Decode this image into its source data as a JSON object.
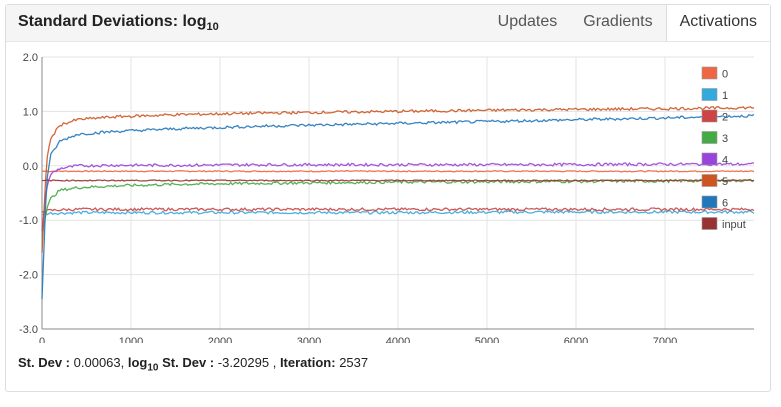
{
  "header": {
    "title": "Standard Deviations: log",
    "title_sub": "10",
    "tabs": [
      {
        "label": "Updates",
        "active": false
      },
      {
        "label": "Gradients",
        "active": false
      },
      {
        "label": "Activations",
        "active": true
      }
    ]
  },
  "chart_data": {
    "type": "line",
    "title": "Standard Deviations: log10",
    "xlabel": "",
    "ylabel": "",
    "xlim": [
      0,
      8000
    ],
    "ylim": [
      -3.0,
      2.0
    ],
    "x_ticks": [
      "0",
      "1000",
      "2000",
      "3000",
      "4000",
      "5000",
      "6000",
      "7000"
    ],
    "y_ticks": [
      "2.0",
      "1.0",
      "0.0",
      "-1.0",
      "-2.0",
      "-3.0"
    ],
    "grid": true,
    "legend_position": "top-right",
    "series": [
      {
        "name": "0",
        "color": "#ee6644",
        "x": [
          0,
          50,
          100,
          200,
          400,
          800,
          1500,
          2500,
          4000,
          5500,
          7000,
          8000
        ],
        "values": [
          -0.1,
          -0.1,
          -0.1,
          -0.1,
          -0.1,
          -0.1,
          -0.1,
          -0.1,
          -0.1,
          -0.1,
          -0.1,
          -0.1
        ]
      },
      {
        "name": "1",
        "color": "#33aadd",
        "x": [
          0,
          50,
          100,
          200,
          400,
          800,
          1500,
          2500,
          4000,
          5500,
          7000,
          8000
        ],
        "values": [
          -0.9,
          -0.88,
          -0.87,
          -0.87,
          -0.86,
          -0.86,
          -0.86,
          -0.86,
          -0.86,
          -0.85,
          -0.85,
          -0.85
        ]
      },
      {
        "name": "2",
        "color": "#cc4444",
        "x": [
          0,
          50,
          100,
          200,
          400,
          800,
          1500,
          2500,
          4000,
          5500,
          7000,
          8000
        ],
        "values": [
          -0.85,
          -0.83,
          -0.82,
          -0.81,
          -0.8,
          -0.8,
          -0.8,
          -0.8,
          -0.8,
          -0.8,
          -0.8,
          -0.8
        ]
      },
      {
        "name": "3",
        "color": "#44aa44",
        "x": [
          0,
          50,
          100,
          200,
          400,
          800,
          1500,
          2500,
          4000,
          5500,
          7000,
          8000
        ],
        "values": [
          -1.3,
          -0.8,
          -0.6,
          -0.45,
          -0.4,
          -0.37,
          -0.34,
          -0.32,
          -0.3,
          -0.29,
          -0.28,
          -0.27
        ]
      },
      {
        "name": "4",
        "color": "#9944dd",
        "x": [
          0,
          50,
          100,
          200,
          400,
          800,
          1500,
          2500,
          4000,
          5500,
          7000,
          8000
        ],
        "values": [
          -1.2,
          -0.4,
          -0.15,
          -0.05,
          0.0,
          0.01,
          0.01,
          0.02,
          0.02,
          0.02,
          0.03,
          0.03
        ]
      },
      {
        "name": "5",
        "color": "#cc5522",
        "x": [
          0,
          50,
          100,
          200,
          400,
          800,
          1500,
          2500,
          4000,
          5500,
          7000,
          8000
        ],
        "values": [
          -1.6,
          0.1,
          0.5,
          0.75,
          0.85,
          0.9,
          0.94,
          0.97,
          1.0,
          1.03,
          1.05,
          1.07
        ]
      },
      {
        "name": "6",
        "color": "#2277bb",
        "x": [
          0,
          50,
          100,
          200,
          400,
          800,
          1500,
          2500,
          4000,
          5500,
          7000,
          8000
        ],
        "values": [
          -2.45,
          -0.3,
          0.2,
          0.45,
          0.58,
          0.63,
          0.68,
          0.73,
          0.78,
          0.83,
          0.88,
          0.92
        ]
      },
      {
        "name": "input",
        "color": "#993333",
        "x": [
          0,
          50,
          100,
          200,
          400,
          800,
          1500,
          2500,
          4000,
          5500,
          7000,
          8000
        ],
        "values": [
          -0.27,
          -0.27,
          -0.27,
          -0.27,
          -0.27,
          -0.27,
          -0.27,
          -0.27,
          -0.27,
          -0.27,
          -0.27,
          -0.27
        ]
      }
    ]
  },
  "footer": {
    "stdev_label": "St. Dev :",
    "stdev_value": "0.00063,",
    "log_label": "log",
    "log_sub": "10",
    "log_label_rest": "St. Dev :",
    "log_value": "-3.20295 ,",
    "iter_label": "Iteration:",
    "iter_value": "2537"
  }
}
